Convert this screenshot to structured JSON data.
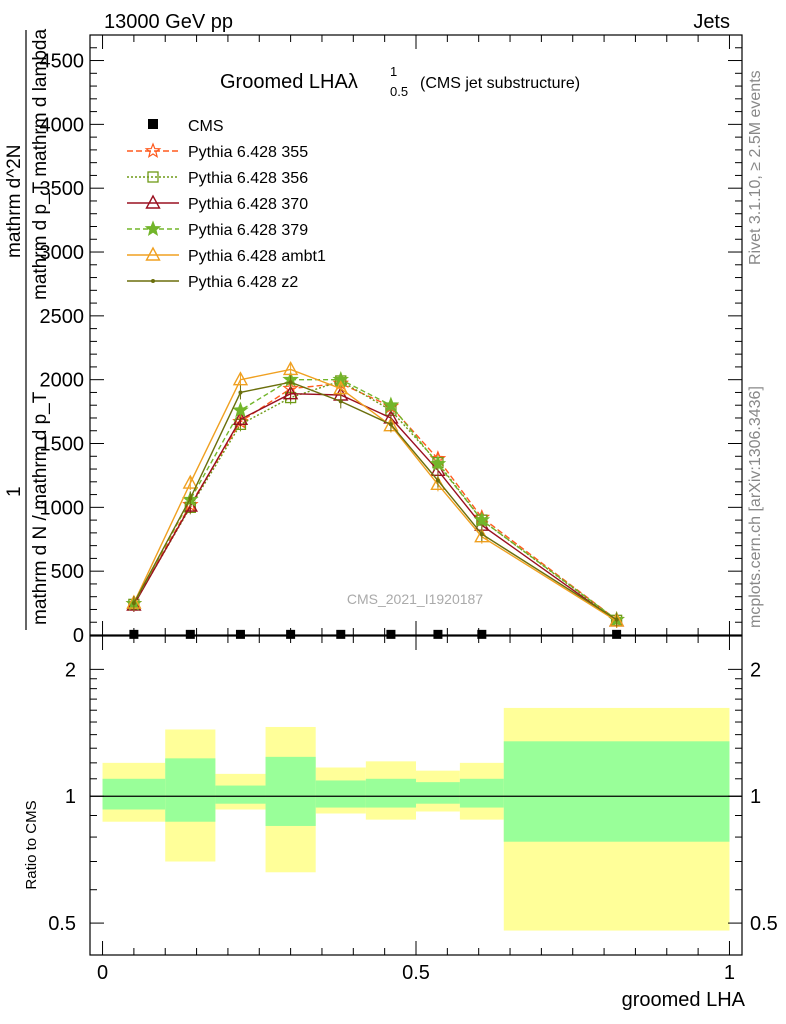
{
  "header": {
    "left": "13000 GeV pp",
    "right": "Jets"
  },
  "side_text": {
    "rivet": "Rivet 3.1.10, ≥ 2.5M events",
    "mcplots": "mcplots.cern.ch [arXiv:1306.3436]"
  },
  "watermark": "CMS_2021_I1920187",
  "chart_data": [
    {
      "type": "line",
      "title_main": "Groomed LHA",
      "title_lambda": "λ",
      "title_sup": "1",
      "title_sub": "0.5",
      "subtitle": "(CMS jet substructure)",
      "xlim": [
        -0.02,
        1.02
      ],
      "ylim": [
        0,
        4700
      ],
      "yticks": [
        0,
        500,
        1000,
        1500,
        2000,
        2500,
        3000,
        3500,
        4000,
        4500
      ],
      "ytick_labels": [
        "0",
        "500",
        "1000",
        "1500",
        "2000",
        "2500",
        "3000",
        "3500",
        "4000",
        "4500"
      ],
      "ylabel_lines": [
        "mathrm d N / mathrm d p_T",
        "mathrm d^2N",
        "mathrm d p_T mathrm d lambda",
        "1"
      ],
      "x": [
        0.05,
        0.14,
        0.22,
        0.3,
        0.38,
        0.46,
        0.535,
        0.605,
        0.82
      ],
      "data": {
        "name": "CMS",
        "color": "#000000",
        "values": [
          5,
          5,
          5,
          5,
          5,
          5,
          5,
          5,
          5
        ]
      },
      "series": [
        {
          "name": "Pythia 6.428 355",
          "color": "#ff5a1e",
          "dash": "6,3",
          "marker": "star-open",
          "values": [
            245,
            1020,
            1670,
            1930,
            1970,
            1790,
            1380,
            920,
            120
          ]
        },
        {
          "name": "Pythia 6.428 356",
          "color": "#6f9a16",
          "dash": "2,2",
          "marker": "square-open",
          "values": [
            240,
            1000,
            1650,
            1860,
            1990,
            1760,
            1350,
            900,
            115
          ]
        },
        {
          "name": "Pythia 6.428 370",
          "color": "#9a1020",
          "dash": "",
          "marker": "triangle-open",
          "values": [
            235,
            1010,
            1690,
            1890,
            1880,
            1700,
            1290,
            860,
            110
          ]
        },
        {
          "name": "Pythia 6.428 379",
          "color": "#72b52a",
          "dash": "5,3",
          "marker": "star",
          "values": [
            245,
            1060,
            1760,
            2000,
            2000,
            1800,
            1340,
            900,
            120
          ]
        },
        {
          "name": "Pythia 6.428 ambt1",
          "color": "#f0a020",
          "dash": "",
          "marker": "triangle-open",
          "values": [
            250,
            1190,
            2000,
            2080,
            1930,
            1640,
            1180,
            770,
            110
          ]
        },
        {
          "name": "Pythia 6.428 z2",
          "color": "#6b6f0c",
          "dash": "",
          "marker": "dot",
          "values": [
            250,
            1070,
            1900,
            1980,
            1830,
            1650,
            1210,
            790,
            120
          ]
        }
      ]
    },
    {
      "type": "area",
      "ylabel": "Ratio to CMS",
      "xlabel": "groomed LHA",
      "xlim": [
        -0.02,
        1.02
      ],
      "ylim": [
        0.42,
        2.4
      ],
      "log_y": true,
      "xticks": [
        0,
        0.5,
        1
      ],
      "xtick_labels": [
        "0",
        "0.5",
        "1"
      ],
      "yticks": [
        0.5,
        1,
        2
      ],
      "ytick_labels": [
        "0.5",
        "1",
        "2"
      ],
      "bins": [
        {
          "lo": 0.0,
          "hi": 0.1,
          "inner": [
            0.93,
            1.1
          ],
          "outer": [
            0.87,
            1.2
          ]
        },
        {
          "lo": 0.1,
          "hi": 0.18,
          "inner": [
            0.87,
            1.23
          ],
          "outer": [
            0.7,
            1.44
          ]
        },
        {
          "lo": 0.18,
          "hi": 0.26,
          "inner": [
            0.96,
            1.06
          ],
          "outer": [
            0.93,
            1.13
          ]
        },
        {
          "lo": 0.26,
          "hi": 0.34,
          "inner": [
            0.85,
            1.24
          ],
          "outer": [
            0.66,
            1.46
          ]
        },
        {
          "lo": 0.34,
          "hi": 0.42,
          "inner": [
            0.94,
            1.09
          ],
          "outer": [
            0.91,
            1.17
          ]
        },
        {
          "lo": 0.42,
          "hi": 0.5,
          "inner": [
            0.94,
            1.1
          ],
          "outer": [
            0.88,
            1.21
          ]
        },
        {
          "lo": 0.5,
          "hi": 0.57,
          "inner": [
            0.96,
            1.08
          ],
          "outer": [
            0.92,
            1.15
          ]
        },
        {
          "lo": 0.57,
          "hi": 0.64,
          "inner": [
            0.94,
            1.1
          ],
          "outer": [
            0.88,
            1.2
          ]
        },
        {
          "lo": 0.64,
          "hi": 1.0,
          "inner": [
            0.78,
            1.35
          ],
          "outer": [
            0.48,
            1.62
          ]
        }
      ],
      "reference": 1
    }
  ]
}
